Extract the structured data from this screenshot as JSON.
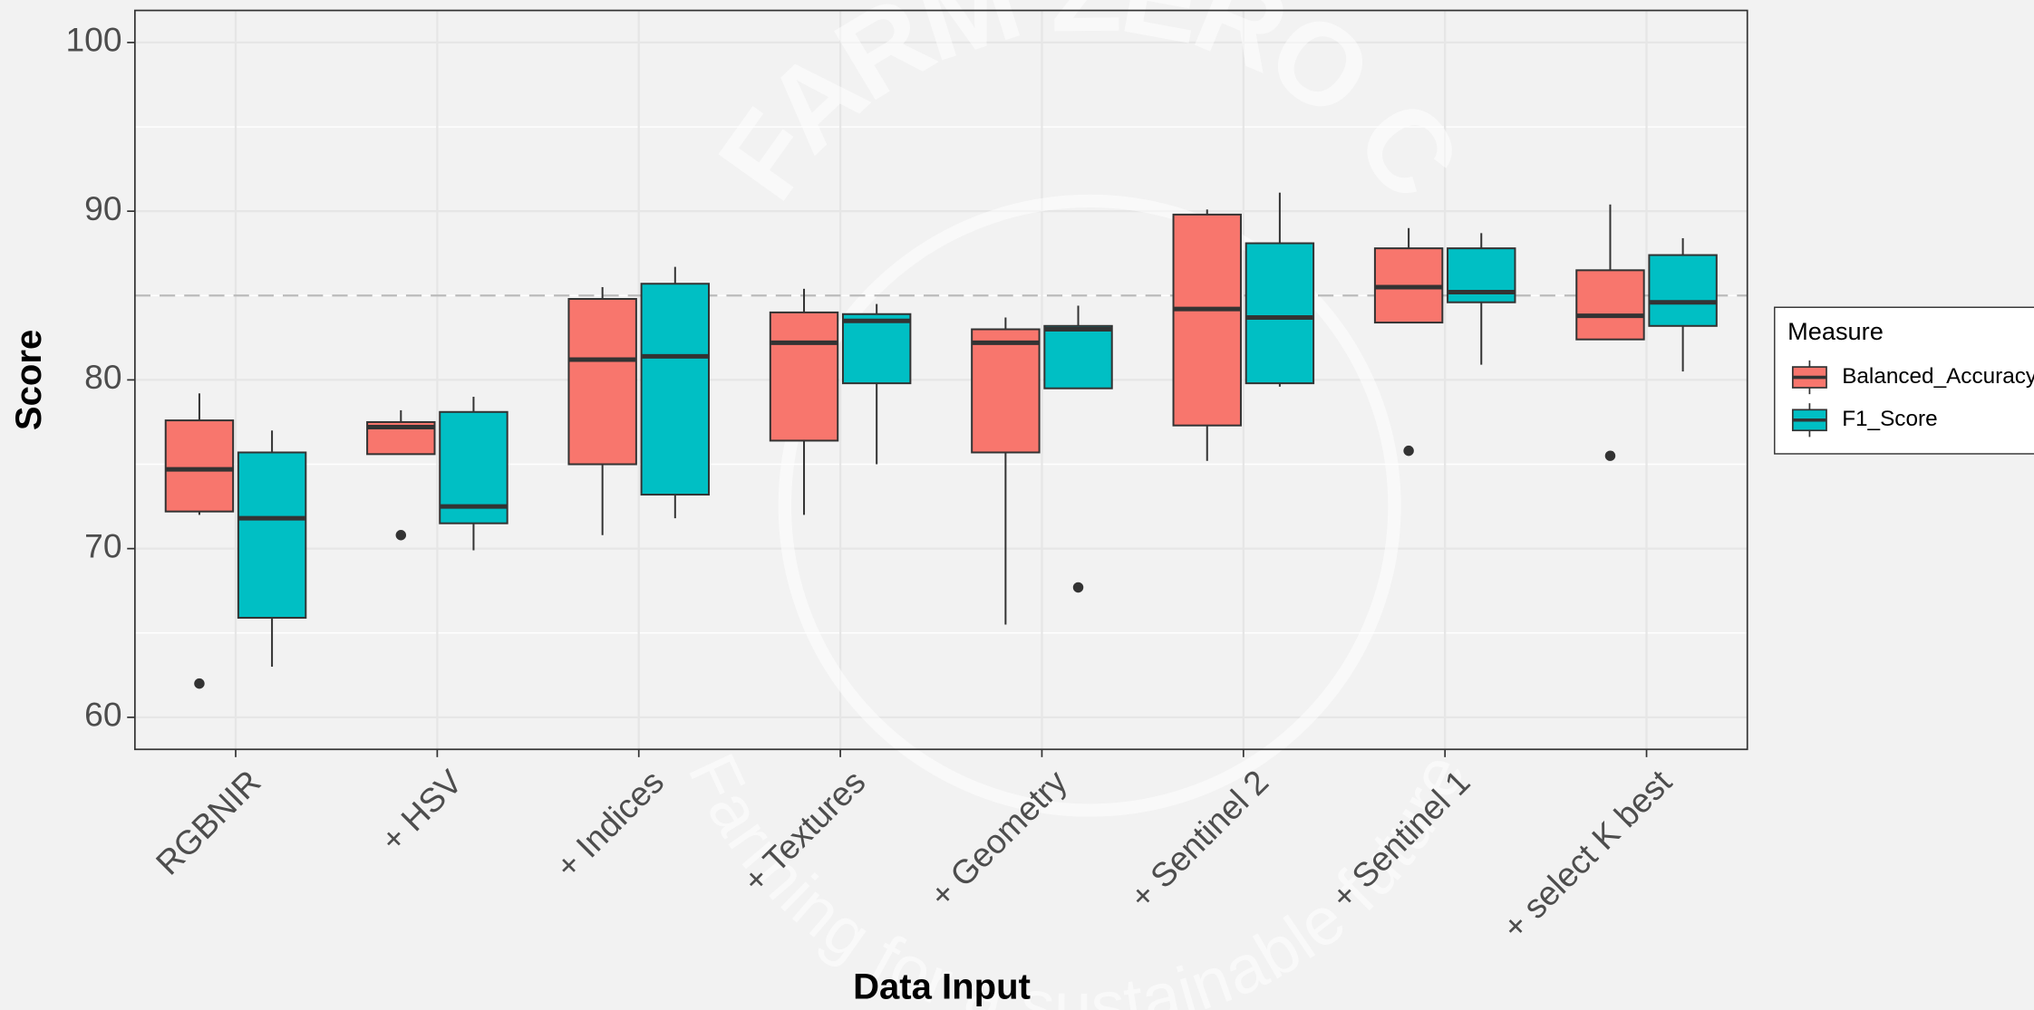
{
  "chart_data": {
    "type": "boxplot",
    "x_label": "Data Input",
    "y_label": "Score",
    "categories": [
      "RGBNIR",
      "+ HSV",
      "+ Indices",
      "+ Textures",
      "+ Geometry",
      "+ Sentinel 2",
      "+ Sentinel 1",
      "+ select K best"
    ],
    "ylim": [
      58.1,
      101.9
    ],
    "yticks": [
      60,
      70,
      80,
      90,
      100
    ],
    "minor_yticks": [
      65,
      75,
      85,
      95
    ],
    "grid": true,
    "reference_line": 85,
    "legend_title": "Measure",
    "legend_position": "right",
    "watermark": {
      "title": "FARM ZERO C",
      "subtitle": "Farming for a sustainable future"
    },
    "series": [
      {
        "name": "Balanced_Accuracy",
        "color": "#f8766d",
        "low": [
          72.0,
          75.6,
          70.8,
          72.0,
          65.5,
          75.2,
          83.4,
          82.4
        ],
        "q1": [
          72.2,
          75.6,
          75.0,
          76.4,
          75.7,
          77.3,
          83.4,
          82.4
        ],
        "median": [
          74.7,
          77.2,
          81.2,
          82.2,
          82.2,
          84.2,
          85.5,
          83.8
        ],
        "q3": [
          77.6,
          77.5,
          84.8,
          84.0,
          83.0,
          89.8,
          87.8,
          86.5
        ],
        "high": [
          79.2,
          78.2,
          85.5,
          85.4,
          83.7,
          90.1,
          89.0,
          90.4
        ],
        "outliers": [
          [
            62.0
          ],
          [
            70.8
          ],
          [],
          [],
          [],
          [],
          [
            75.8
          ],
          [
            75.5
          ]
        ]
      },
      {
        "name": "F1_Score",
        "color": "#00bfc4",
        "low": [
          63.0,
          69.9,
          71.8,
          75.0,
          79.5,
          79.6,
          80.9,
          80.5
        ],
        "q1": [
          65.9,
          71.5,
          73.2,
          79.8,
          79.5,
          79.8,
          84.6,
          83.2
        ],
        "median": [
          71.8,
          72.5,
          81.4,
          83.5,
          83.0,
          83.7,
          85.2,
          84.6
        ],
        "q3": [
          75.7,
          78.1,
          85.7,
          83.9,
          83.2,
          88.1,
          87.8,
          87.4
        ],
        "high": [
          77.0,
          79.0,
          86.7,
          84.5,
          84.4,
          91.1,
          88.7,
          88.4
        ],
        "outliers": [
          [],
          [],
          [],
          [],
          [
            67.7
          ],
          [],
          [],
          []
        ]
      }
    ]
  }
}
